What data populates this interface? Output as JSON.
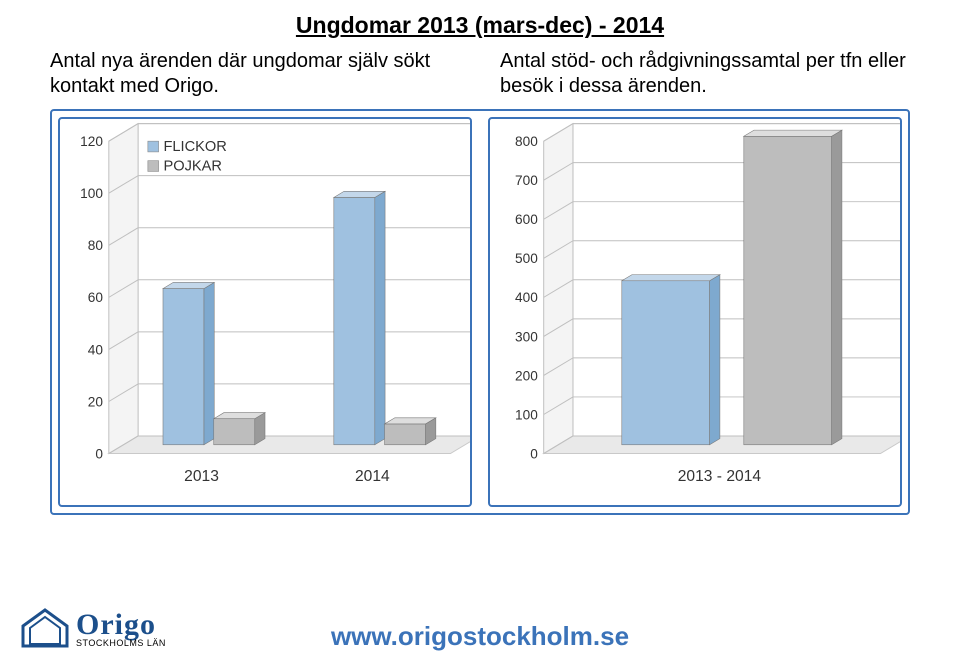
{
  "title": "Ungdomar 2013 (mars-dec) - 2014",
  "subtitle_left": "Antal nya ärenden där ungdomar själv sökt kontakt med Origo.",
  "subtitle_right": "Antal stöd- och rådgivningssamtal per tfn eller besök i dessa ärenden.",
  "footer_url": "www.origostockholm.se",
  "logo": {
    "text": "Origo",
    "sub": "STOCKHOLMS LÄN"
  },
  "chart_left": {
    "type": "bar",
    "y_ticks": [
      0,
      20,
      40,
      60,
      80,
      100,
      120
    ],
    "ylim": [
      0,
      120
    ],
    "categories": [
      "2013",
      "2014"
    ],
    "series": [
      {
        "name": "FLICKOR",
        "color_top": "#c3d7ea",
        "color_front": "#9fc1e0",
        "color_side": "#7ea9cf",
        "values": [
          60,
          95
        ]
      },
      {
        "name": "POJKAR",
        "color_top": "#dedede",
        "color_front": "#bdbdbd",
        "color_side": "#9a9a9a",
        "values": [
          10,
          8
        ]
      }
    ],
    "legend_marker_flickor": "#9fc1e0",
    "legend_marker_pojkar": "#bdbdbd",
    "grid_color": "#bfbfbf",
    "floor_fill": "#e9e9e9",
    "floor_stroke": "#c9c9c9",
    "backwall_fill": "#ffffff"
  },
  "chart_right": {
    "type": "bar",
    "y_ticks": [
      0,
      100,
      200,
      300,
      400,
      500,
      600,
      700,
      800
    ],
    "ylim": [
      0,
      800
    ],
    "categories": [
      "2013 - 2014"
    ],
    "series": [
      {
        "color_top": "#c3d7ea",
        "color_front": "#9fc1e0",
        "color_side": "#7ea9cf",
        "values": [
          420
        ]
      },
      {
        "color_top": "#dedede",
        "color_front": "#bdbdbd",
        "color_side": "#9a9a9a",
        "values": [
          790
        ]
      }
    ],
    "grid_color": "#bfbfbf",
    "floor_fill": "#e9e9e9",
    "floor_stroke": "#c9c9c9"
  }
}
